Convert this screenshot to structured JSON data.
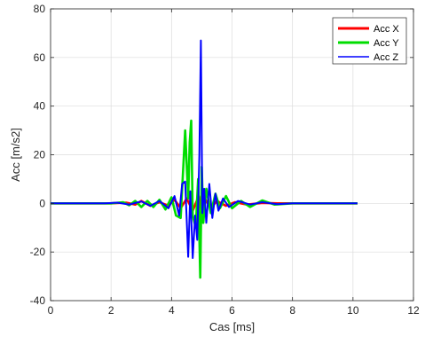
{
  "chart_data": {
    "type": "line",
    "xlabel": "Cas [ms]",
    "ylabel": "Acc [m/s2]",
    "xlim": [
      0,
      12
    ],
    "ylim": [
      -40,
      80
    ],
    "xticks": [
      0,
      2,
      4,
      6,
      8,
      10,
      12
    ],
    "yticks": [
      -40,
      -20,
      0,
      20,
      40,
      60,
      80
    ],
    "grid": true,
    "legend_position": "top-right",
    "series": [
      {
        "name": "Acc X",
        "color": "#ff0000",
        "x": [
          0,
          1,
          2,
          2.5,
          2.8,
          3,
          3.3,
          3.6,
          3.9,
          4.1,
          4.3,
          4.5,
          4.7,
          4.9,
          5.0,
          5.1,
          5.3,
          5.5,
          5.8,
          6.1,
          6.5,
          7,
          7.5,
          8,
          9,
          10.15
        ],
        "values": [
          0,
          0,
          0,
          0.3,
          -0.5,
          1,
          -1,
          0.5,
          -1,
          1.5,
          -2,
          2,
          -3,
          3,
          -4,
          2,
          -2,
          1,
          -1,
          0.5,
          -0.5,
          0.2,
          0,
          0,
          0,
          0
        ]
      },
      {
        "name": "Acc Y",
        "color": "#00dd00",
        "x": [
          0,
          1,
          2,
          2.4,
          2.6,
          2.8,
          3.0,
          3.2,
          3.4,
          3.6,
          3.8,
          4.0,
          4.15,
          4.3,
          4.45,
          4.55,
          4.6,
          4.65,
          4.7,
          4.8,
          4.88,
          4.95,
          5.0,
          5.05,
          5.15,
          5.3,
          5.45,
          5.6,
          5.8,
          6.0,
          6.3,
          6.6,
          7.0,
          7.4,
          8,
          9,
          10.15
        ],
        "values": [
          0,
          0,
          0,
          0.5,
          -0.8,
          1,
          -1.5,
          1,
          -1.5,
          1.5,
          -2.5,
          2.5,
          -5,
          -6,
          30,
          2,
          25,
          34,
          -5,
          -10,
          10,
          -30.5,
          15,
          -8,
          6,
          -4,
          4,
          -2,
          3,
          -2,
          1,
          -1.5,
          1.2,
          -0.5,
          0,
          0,
          0
        ]
      },
      {
        "name": "Acc Z",
        "color": "#0000ff",
        "x": [
          0,
          1,
          1.8,
          2.2,
          2.6,
          3.0,
          3.3,
          3.6,
          3.9,
          4.1,
          4.25,
          4.35,
          4.45,
          4.55,
          4.62,
          4.7,
          4.78,
          4.85,
          4.92,
          4.97,
          5.02,
          5.08,
          5.15,
          5.25,
          5.35,
          5.45,
          5.55,
          5.7,
          5.9,
          6.2,
          6.6,
          7.0,
          7.5,
          8,
          9,
          10.15
        ],
        "values": [
          0,
          0,
          0,
          0.3,
          -0.5,
          0.8,
          -1,
          1,
          -2,
          3,
          -5,
          8,
          9,
          -22,
          5,
          -22.5,
          -5,
          -15,
          20,
          67,
          -4,
          6,
          -8,
          8,
          -6,
          4,
          -3,
          2,
          -1.5,
          1,
          -0.5,
          0.5,
          -0.3,
          0,
          0,
          0
        ]
      }
    ]
  }
}
